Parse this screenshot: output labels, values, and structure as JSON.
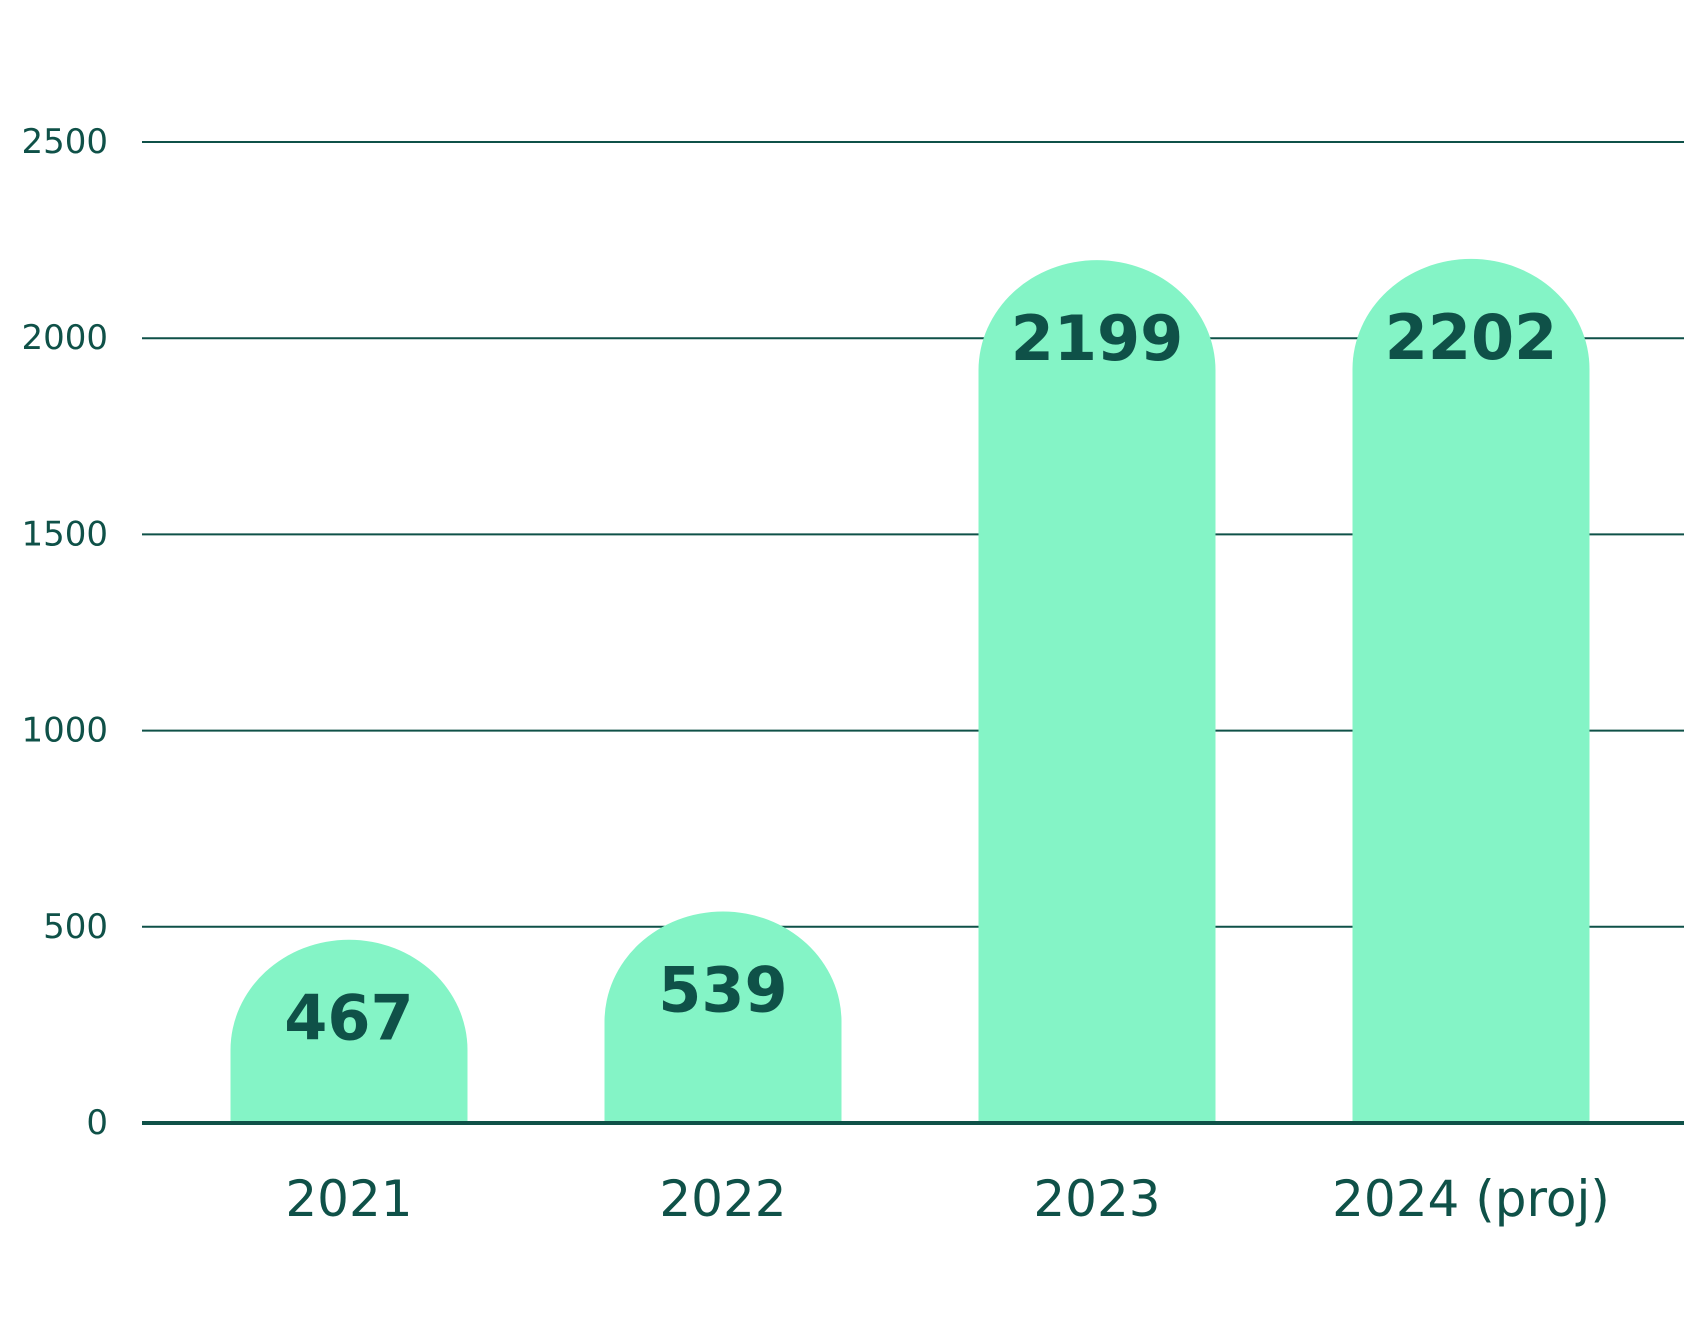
{
  "chart_data": {
    "type": "bar",
    "title": "",
    "xlabel": "",
    "ylabel": "",
    "categories": [
      "2021",
      "2022",
      "2023",
      "2024 (proj)"
    ],
    "values": [
      467,
      539,
      2199,
      2202
    ],
    "ylim": [
      0,
      2500
    ],
    "yticks": [
      0,
      500,
      1000,
      1500,
      2000,
      2500
    ],
    "grid": true,
    "legend": "none",
    "colors": {
      "bar": "#84f4c6",
      "text": "#0f5148",
      "grid": "#0f5148",
      "background": "#ffffff"
    }
  }
}
